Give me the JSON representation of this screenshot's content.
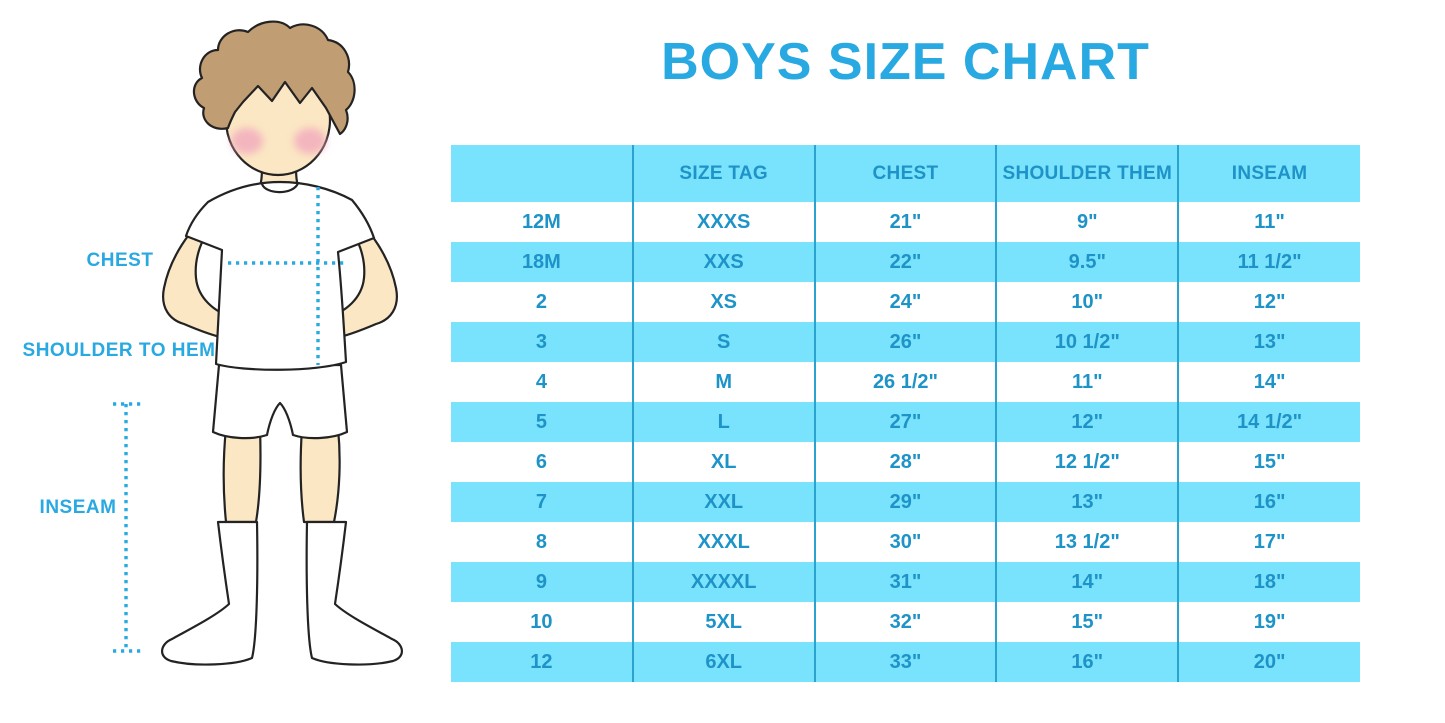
{
  "title": "BOYS SIZE CHART",
  "figure": {
    "labels": {
      "chest": "CHEST",
      "shoulder_to_hem": "SHOULDER TO HEM",
      "inseam": "INSEAM"
    }
  },
  "chart_data": {
    "type": "table",
    "title": "BOYS SIZE CHART",
    "columns": [
      "",
      "SIZE TAG",
      "CHEST",
      "SHOULDER THEM",
      "INSEAM"
    ],
    "rows": [
      [
        "12M",
        "XXXS",
        "21\"",
        "9\"",
        "11\""
      ],
      [
        "18M",
        "XXS",
        "22\"",
        "9.5\"",
        "11 1/2\""
      ],
      [
        "2",
        "XS",
        "24\"",
        "10\"",
        "12\""
      ],
      [
        "3",
        "S",
        "26\"",
        "10 1/2\"",
        "13\""
      ],
      [
        "4",
        "M",
        "26 1/2\"",
        "11\"",
        "14\""
      ],
      [
        "5",
        "L",
        "27\"",
        "12\"",
        "14 1/2\""
      ],
      [
        "6",
        "XL",
        "28\"",
        "12 1/2\"",
        "15\""
      ],
      [
        "7",
        "XXL",
        "29\"",
        "13\"",
        "16\""
      ],
      [
        "8",
        "XXXL",
        "30\"",
        "13 1/2\"",
        "17\""
      ],
      [
        "9",
        "XXXXL",
        "31\"",
        "14\"",
        "18\""
      ],
      [
        "10",
        "5XL",
        "32\"",
        "15\"",
        "19\""
      ],
      [
        "12",
        "6XL",
        "33\"",
        "16\"",
        "20\""
      ]
    ],
    "layout": {
      "header_background": "#79E2FD",
      "row_striping": "white / cyan alternating, first data row white",
      "column_dividers": "vertical only",
      "grid": "no horizontal lines"
    }
  },
  "colors": {
    "blue": "#29A9E1",
    "table_text": "#1E93C8",
    "cyan": "#79E2FD",
    "divider": "#2AA3CF",
    "skin": "#FBE7C3",
    "hair": "#C09D72",
    "cheek": "#F2A9BE",
    "outline": "#232323"
  }
}
